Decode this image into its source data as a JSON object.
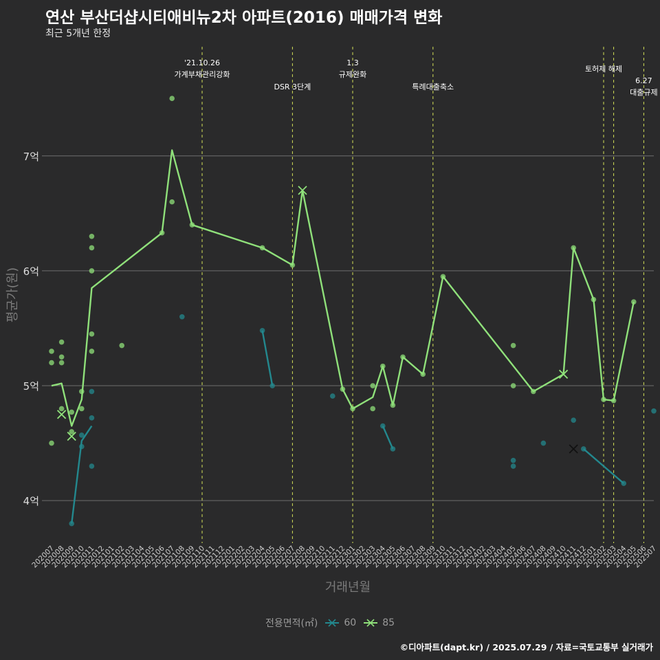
{
  "title": "연산 부산더샵시티애비뉴2차 아파트(2016) 매매가격 변화",
  "subtitle": "최근 5개년 한정",
  "caption": "©디아파트(dapt.kr) / 2025.07.29 / 자료=국토교통부 실거래가",
  "colors": {
    "background": "#2a2a2b",
    "grid": "#6e6e6e",
    "vline": "#d4e157",
    "s60": "#23888e",
    "s85": "#8fe07a"
  },
  "legend": {
    "title": "전용면적(㎡)",
    "items": [
      {
        "label": "60",
        "color": "#23888e"
      },
      {
        "label": "85",
        "color": "#8fe07a"
      }
    ]
  },
  "chart_data": {
    "type": "line",
    "xlabel": "거래년월",
    "ylabel": "평균가(원)",
    "ylim": [
      3.63,
      7.95
    ],
    "y_ticks": [
      {
        "value": 4,
        "label": "4억"
      },
      {
        "value": 5,
        "label": "5억"
      },
      {
        "value": 6,
        "label": "6억"
      },
      {
        "value": 7,
        "label": "7억"
      }
    ],
    "months": [
      "202007",
      "202008",
      "202009",
      "202010",
      "202011",
      "202012",
      "202101",
      "202102",
      "202103",
      "202104",
      "202105",
      "202106",
      "202107",
      "202108",
      "202109",
      "202110",
      "202111",
      "202112",
      "202201",
      "202202",
      "202203",
      "202204",
      "202205",
      "202206",
      "202207",
      "202208",
      "202209",
      "202210",
      "202211",
      "202212",
      "202301",
      "202302",
      "202303",
      "202304",
      "202305",
      "202306",
      "202307",
      "202308",
      "202309",
      "202310",
      "202311",
      "202312",
      "202401",
      "202402",
      "202403",
      "202404",
      "202405",
      "202406",
      "202407",
      "202408",
      "202409",
      "202410",
      "202411",
      "202412",
      "202501",
      "202502",
      "202503",
      "202504",
      "202505",
      "202506",
      "202507"
    ],
    "events": [
      {
        "month": "202110",
        "lines": [
          "'21.10.26",
          "가계부채관리강화"
        ],
        "row": 0
      },
      {
        "month": "202207",
        "lines": [
          "DSR 3단계"
        ],
        "row": 2
      },
      {
        "month": "202301",
        "lines": [
          "1.3",
          "규제완화"
        ],
        "row": 0
      },
      {
        "month": "202309",
        "lines": [
          "특례대출축소"
        ],
        "row": 2
      },
      {
        "month": "202502",
        "lines": [
          "토허제 해제"
        ],
        "row": 1
      },
      {
        "month": "202503",
        "lines": [],
        "row": 1
      },
      {
        "month": "202506",
        "lines": [
          "6.27",
          "대출규제"
        ],
        "row": 3
      }
    ],
    "series": [
      {
        "name": "60",
        "line": [
          [
            "202009",
            3.8
          ],
          [
            "202010",
            4.52
          ],
          [
            "202011",
            4.65
          ],
          null,
          [
            "202204",
            5.48
          ],
          [
            "202205",
            5.0
          ],
          null,
          [
            "202304",
            4.65
          ],
          [
            "202305",
            4.45
          ],
          null,
          [
            "202412",
            4.45
          ],
          [
            "202504",
            4.15
          ]
        ],
        "points": [
          [
            "202009",
            3.8
          ],
          [
            "202010",
            4.57
          ],
          [
            "202010",
            4.47
          ],
          [
            "202011",
            4.95
          ],
          [
            "202011",
            4.72
          ],
          [
            "202011",
            4.3
          ],
          [
            "202108",
            5.6
          ],
          [
            "202204",
            5.48
          ],
          [
            "202205",
            5.0
          ],
          [
            "202211",
            4.91
          ],
          [
            "202304",
            4.65
          ],
          [
            "202305",
            4.45
          ],
          [
            "202405",
            4.35
          ],
          [
            "202405",
            4.3
          ],
          [
            "202408",
            4.5
          ],
          [
            "202411",
            4.7
          ],
          [
            "202412",
            4.45
          ],
          [
            "202504",
            4.15
          ],
          [
            "202507",
            4.78
          ]
        ],
        "crosses": [
          [
            "202411",
            4.45
          ]
        ]
      },
      {
        "name": "85",
        "line": [
          [
            "202007",
            5.0
          ],
          [
            "202008",
            5.02
          ],
          [
            "202009",
            4.65
          ],
          [
            "202010",
            4.88
          ],
          [
            "202011",
            5.85
          ],
          [
            "202106",
            6.33
          ],
          [
            "202107",
            7.05
          ],
          [
            "202109",
            6.4
          ],
          [
            "202204",
            6.2
          ],
          [
            "202207",
            6.05
          ],
          [
            "202208",
            6.7
          ],
          [
            "202212",
            4.97
          ],
          [
            "202301",
            4.8
          ],
          [
            "202303",
            4.9
          ],
          [
            "202304",
            5.17
          ],
          [
            "202305",
            4.83
          ],
          [
            "202306",
            5.25
          ],
          [
            "202308",
            5.1
          ],
          [
            "202310",
            5.95
          ],
          [
            "202407",
            4.95
          ],
          [
            "202410",
            5.1
          ],
          [
            "202411",
            6.2
          ],
          [
            "202501",
            5.75
          ],
          [
            "202502",
            4.88
          ],
          [
            "202503",
            4.87
          ],
          [
            "202505",
            5.73
          ]
        ],
        "points": [
          [
            "202007",
            5.3
          ],
          [
            "202007",
            5.2
          ],
          [
            "202007",
            4.5
          ],
          [
            "202008",
            5.38
          ],
          [
            "202008",
            5.25
          ],
          [
            "202008",
            5.2
          ],
          [
            "202008",
            4.8
          ],
          [
            "202009",
            4.77
          ],
          [
            "202009",
            4.6
          ],
          [
            "202010",
            4.95
          ],
          [
            "202010",
            4.8
          ],
          [
            "202011",
            6.3
          ],
          [
            "202011",
            6.2
          ],
          [
            "202011",
            6.0
          ],
          [
            "202011",
            5.45
          ],
          [
            "202011",
            5.3
          ],
          [
            "202102",
            5.35
          ],
          [
            "202106",
            6.33
          ],
          [
            "202107",
            7.5
          ],
          [
            "202107",
            6.6
          ],
          [
            "202109",
            6.4
          ],
          [
            "202204",
            6.2
          ],
          [
            "202207",
            6.05
          ],
          [
            "202212",
            4.97
          ],
          [
            "202301",
            4.8
          ],
          [
            "202303",
            5.0
          ],
          [
            "202303",
            4.8
          ],
          [
            "202304",
            5.17
          ],
          [
            "202305",
            4.83
          ],
          [
            "202306",
            5.25
          ],
          [
            "202308",
            5.1
          ],
          [
            "202310",
            5.95
          ],
          [
            "202405",
            5.35
          ],
          [
            "202405",
            5.0
          ],
          [
            "202407",
            4.95
          ],
          [
            "202411",
            6.2
          ],
          [
            "202501",
            5.75
          ],
          [
            "202502",
            4.88
          ],
          [
            "202503",
            4.87
          ],
          [
            "202505",
            5.73
          ]
        ],
        "crosses": [
          [
            "202008",
            4.75
          ],
          [
            "202009",
            4.56
          ],
          [
            "202208",
            6.7
          ],
          [
            "202410",
            5.1
          ]
        ]
      }
    ]
  }
}
